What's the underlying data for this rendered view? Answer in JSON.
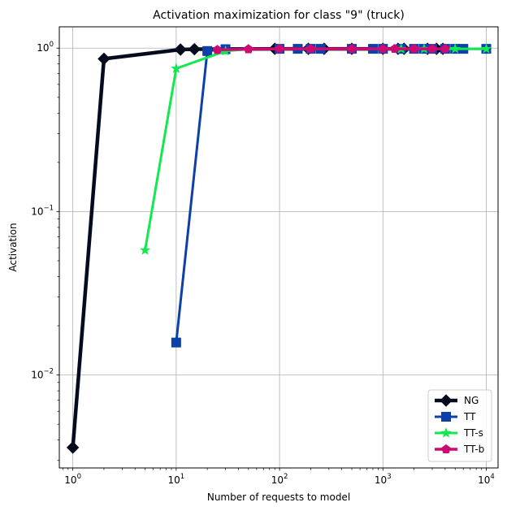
{
  "chart_data": {
    "type": "line",
    "title": "Activation maximization for class \"9\" (truck)",
    "xlabel": "Number of requests to model",
    "ylabel": "Activation",
    "xscale": "log",
    "yscale": "log",
    "xlim": [
      0.74,
      13000
    ],
    "ylim": [
      0.0027,
      1.35
    ],
    "xticks": [
      {
        "value": 1,
        "base": "10",
        "exp": "0"
      },
      {
        "value": 10,
        "base": "10",
        "exp": "1"
      },
      {
        "value": 100,
        "base": "10",
        "exp": "2"
      },
      {
        "value": 1000,
        "base": "10",
        "exp": "3"
      },
      {
        "value": 10000,
        "base": "10",
        "exp": "4"
      }
    ],
    "yticks": [
      {
        "value": 0.01,
        "base": "10",
        "exp": "−2"
      },
      {
        "value": 0.1,
        "base": "10",
        "exp": "−1"
      },
      {
        "value": 1,
        "base": "10",
        "exp": "0"
      }
    ],
    "grid": true,
    "legend_position": "lower-right",
    "series": [
      {
        "name": "NG",
        "color": "#050b1f",
        "marker": "diamond",
        "x": [
          1,
          2,
          11,
          15,
          90,
          190,
          270,
          500,
          1000,
          1400,
          1600,
          2700,
          3300,
          3800
        ],
        "y": [
          0.0036,
          0.86,
          0.98,
          0.985,
          0.99,
          0.99,
          0.99,
          0.99,
          0.99,
          0.99,
          0.99,
          0.99,
          0.99,
          0.99
        ]
      },
      {
        "name": "TT",
        "color": "#0d40a8",
        "marker": "square",
        "x": [
          10,
          20,
          30,
          100,
          150,
          200,
          250,
          500,
          800,
          1000,
          1500,
          2000,
          2500,
          3000,
          4000,
          5000,
          6000,
          10000
        ],
        "y": [
          0.0158,
          0.96,
          0.985,
          0.99,
          0.99,
          0.99,
          0.99,
          0.99,
          0.99,
          0.99,
          0.99,
          0.99,
          0.99,
          0.99,
          0.99,
          0.99,
          0.99,
          0.99
        ]
      },
      {
        "name": "TT-s",
        "color": "#11e94e",
        "marker": "star",
        "x": [
          5,
          10,
          30,
          50,
          200,
          1000,
          1500,
          2500,
          5000,
          10000
        ],
        "y": [
          0.058,
          0.75,
          0.96,
          0.985,
          0.99,
          0.99,
          0.99,
          0.99,
          0.99,
          0.99
        ]
      },
      {
        "name": "TT-b",
        "color": "#cc0a72",
        "marker": "pentagon",
        "x": [
          25,
          50,
          100,
          200,
          500,
          1000,
          1300,
          2000,
          3000,
          4000
        ],
        "y": [
          0.975,
          0.985,
          0.99,
          0.99,
          0.99,
          0.99,
          0.99,
          0.99,
          0.99,
          0.99
        ]
      }
    ]
  }
}
